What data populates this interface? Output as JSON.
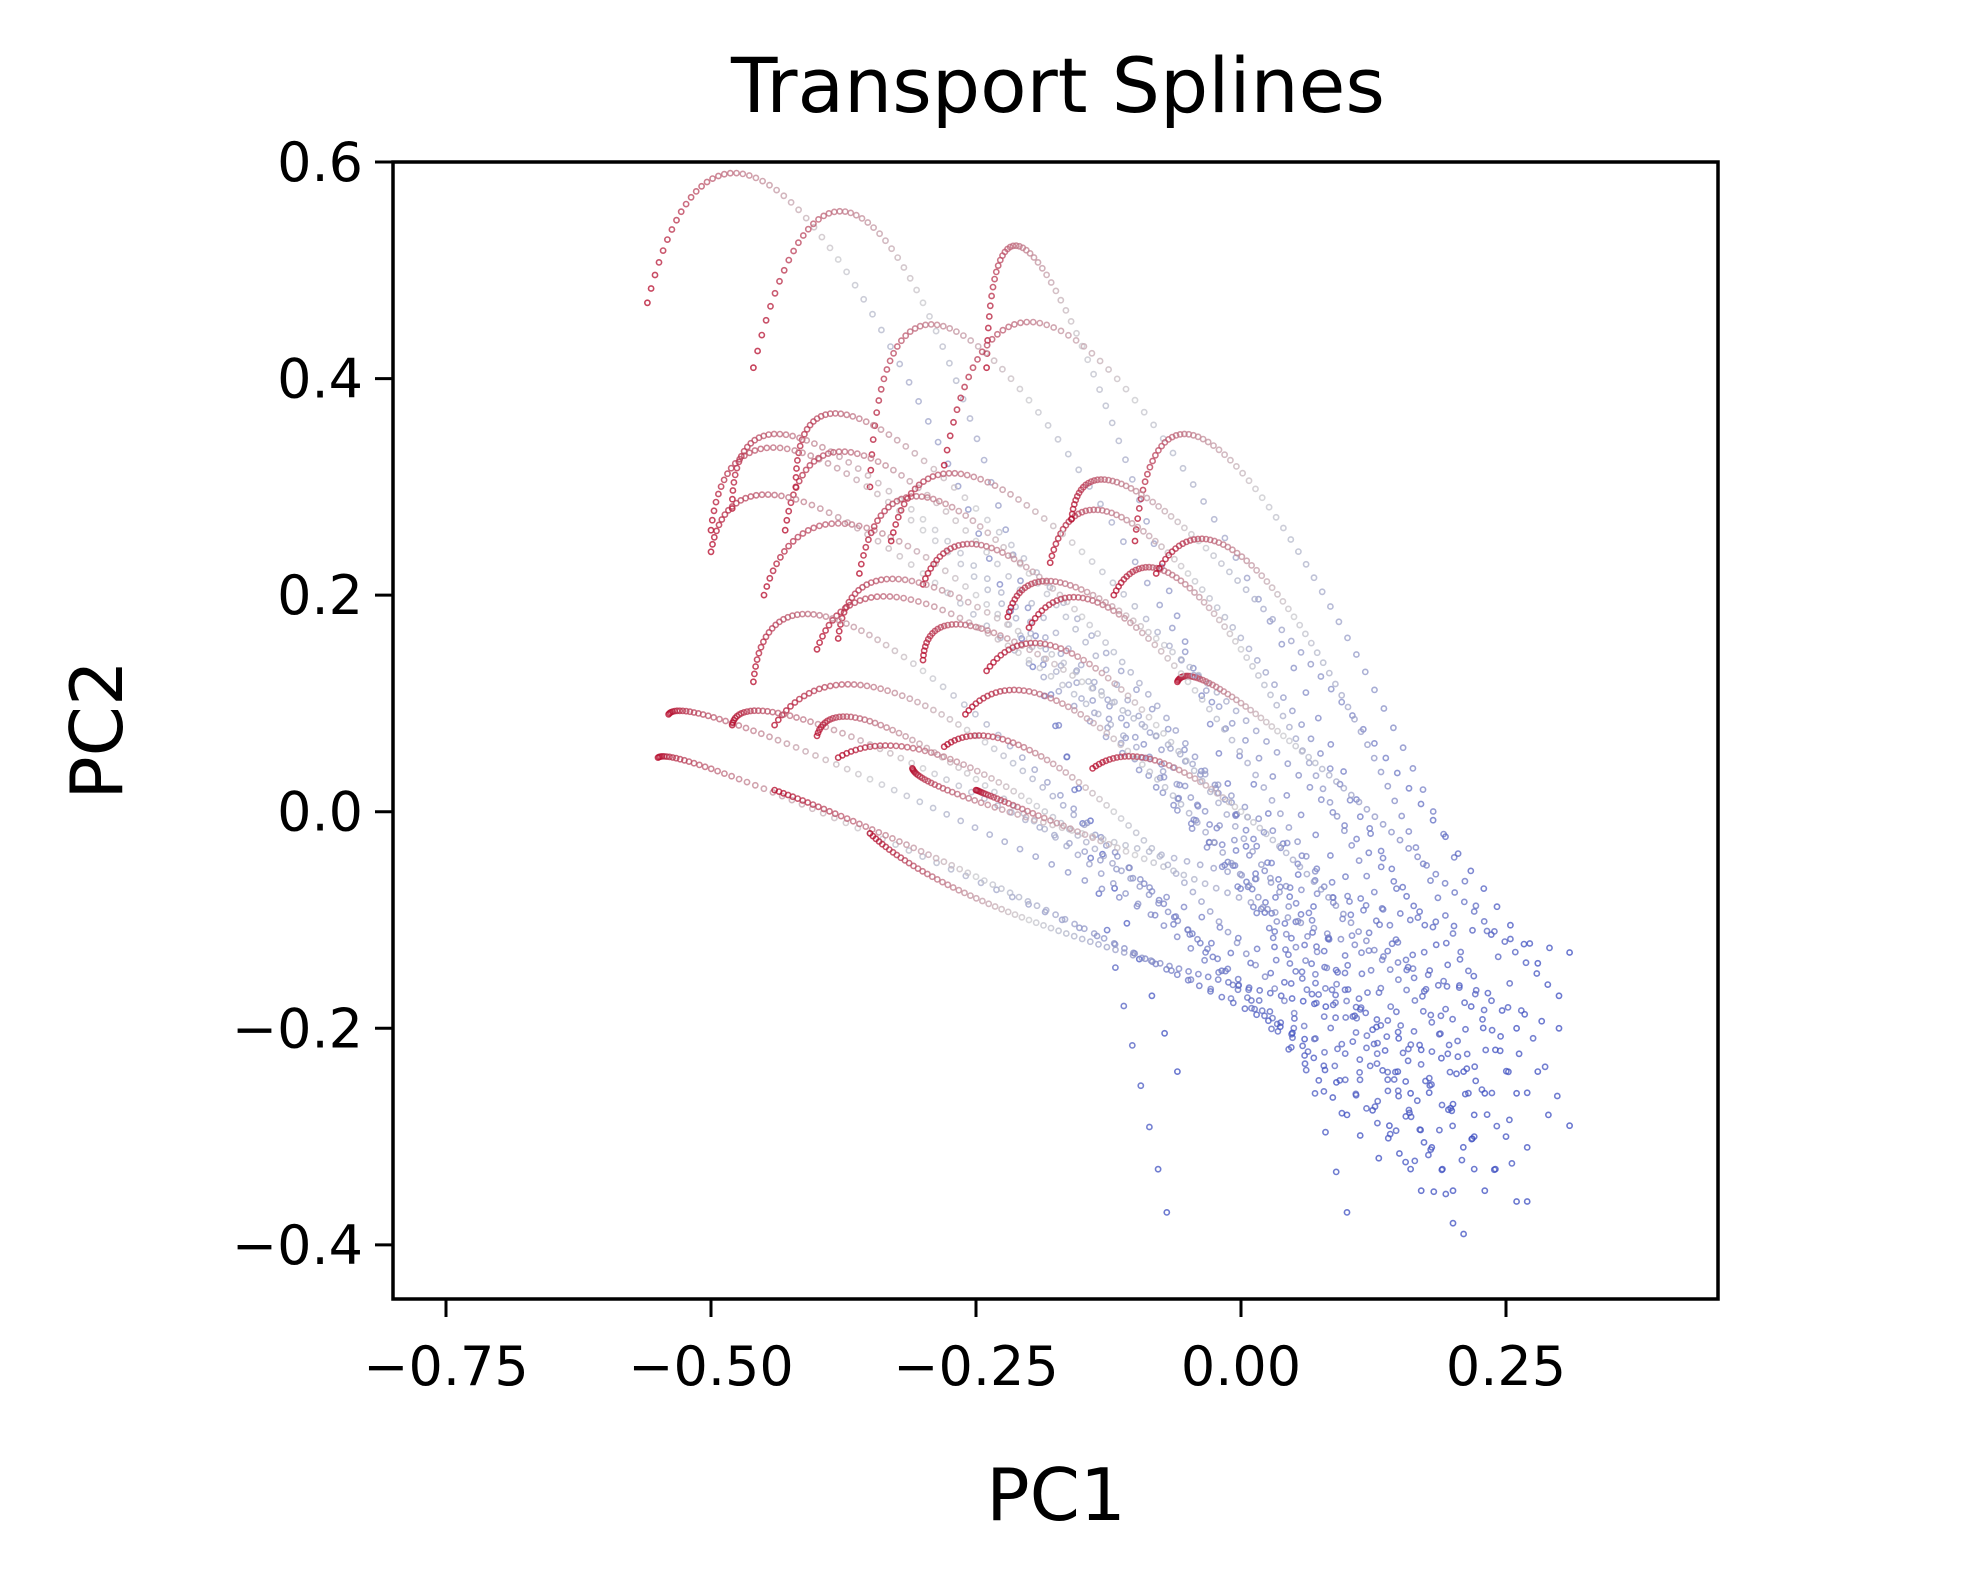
{
  "chart_data": {
    "type": "scatter",
    "title": "Transport Splines",
    "xlabel": "PC1",
    "ylabel": "PC2",
    "xlim": [
      -0.8,
      0.45
    ],
    "ylim": [
      -0.45,
      0.6
    ],
    "xticks": [
      -0.75,
      -0.5,
      -0.25,
      0.0,
      0.25
    ],
    "xtick_labels": [
      "−0.75",
      "−0.50",
      "−0.25",
      "0.00",
      "0.25"
    ],
    "yticks": [
      0.6,
      0.4,
      0.2,
      0.0,
      -0.2,
      -0.4
    ],
    "ytick_labels": [
      "0.6",
      "0.4",
      "0.2",
      "0.0",
      "−0.2",
      "−0.4"
    ],
    "grid": false,
    "colormap": "coolwarm",
    "color_start": "#b40426",
    "color_mid": "#c8c8cc",
    "color_end": "#3b4cc0",
    "splines": [
      {
        "start": [
          -0.56,
          0.47
        ],
        "mid": [
          -0.38,
          0.51
        ],
        "end": [
          -0.06,
          -0.24
        ]
      },
      {
        "start": [
          -0.46,
          0.41
        ],
        "mid": [
          -0.3,
          0.47
        ],
        "end": [
          -0.07,
          -0.37
        ]
      },
      {
        "start": [
          -0.24,
          0.41
        ],
        "mid": [
          -0.15,
          0.43
        ],
        "end": [
          0.1,
          -0.37
        ]
      },
      {
        "start": [
          -0.35,
          0.3
        ],
        "mid": [
          -0.2,
          0.38
        ],
        "end": [
          0.21,
          -0.39
        ]
      },
      {
        "start": [
          -0.28,
          0.32
        ],
        "mid": [
          -0.1,
          0.38
        ],
        "end": [
          0.27,
          -0.36
        ]
      },
      {
        "start": [
          -0.1,
          0.25
        ],
        "mid": [
          0.02,
          0.29
        ],
        "end": [
          0.31,
          -0.29
        ]
      },
      {
        "start": [
          -0.42,
          0.3
        ],
        "mid": [
          -0.25,
          0.28
        ],
        "end": [
          0.26,
          -0.36
        ]
      },
      {
        "start": [
          -0.48,
          0.28
        ],
        "mid": [
          -0.3,
          0.27
        ],
        "end": [
          0.24,
          -0.33
        ]
      },
      {
        "start": [
          -0.5,
          0.26
        ],
        "mid": [
          -0.3,
          0.26
        ],
        "end": [
          0.23,
          -0.35
        ]
      },
      {
        "start": [
          -0.43,
          0.26
        ],
        "mid": [
          -0.25,
          0.25
        ],
        "end": [
          0.2,
          -0.38
        ]
      },
      {
        "start": [
          -0.5,
          0.24
        ],
        "mid": [
          -0.3,
          0.22
        ],
        "end": [
          0.22,
          -0.3
        ]
      },
      {
        "start": [
          -0.45,
          0.2
        ],
        "mid": [
          -0.25,
          0.2
        ],
        "end": [
          0.19,
          -0.33
        ]
      },
      {
        "start": [
          -0.36,
          0.22
        ],
        "mid": [
          -0.2,
          0.22
        ],
        "end": [
          0.17,
          -0.35
        ]
      },
      {
        "start": [
          -0.3,
          0.21
        ],
        "mid": [
          -0.15,
          0.18
        ],
        "end": [
          0.16,
          -0.26
        ]
      },
      {
        "start": [
          -0.38,
          0.16
        ],
        "mid": [
          -0.2,
          0.16
        ],
        "end": [
          0.29,
          -0.28
        ]
      },
      {
        "start": [
          -0.4,
          0.15
        ],
        "mid": [
          -0.2,
          0.14
        ],
        "end": [
          0.25,
          -0.3
        ]
      },
      {
        "start": [
          -0.46,
          0.12
        ],
        "mid": [
          -0.3,
          0.13
        ],
        "end": [
          0.13,
          -0.32
        ]
      },
      {
        "start": [
          -0.44,
          0.08
        ],
        "mid": [
          -0.25,
          0.07
        ],
        "end": [
          0.1,
          -0.28
        ]
      },
      {
        "start": [
          -0.54,
          0.09
        ],
        "mid": [
          -0.35,
          0.03
        ],
        "end": [
          0.17,
          -0.22
        ]
      },
      {
        "start": [
          -0.55,
          0.05
        ],
        "mid": [
          -0.35,
          -0.02
        ],
        "end": [
          0.2,
          -0.27
        ]
      },
      {
        "start": [
          -0.48,
          0.08
        ],
        "mid": [
          -0.3,
          0.04
        ],
        "end": [
          0.21,
          -0.24
        ]
      },
      {
        "start": [
          -0.4,
          0.07
        ],
        "mid": [
          -0.25,
          0.03
        ],
        "end": [
          0.14,
          -0.29
        ]
      },
      {
        "start": [
          -0.38,
          0.05
        ],
        "mid": [
          -0.2,
          0.01
        ],
        "end": [
          0.09,
          -0.25
        ]
      },
      {
        "start": [
          -0.31,
          0.04
        ],
        "mid": [
          -0.15,
          -0.02
        ],
        "end": [
          0.31,
          -0.13
        ]
      },
      {
        "start": [
          -0.25,
          0.02
        ],
        "mid": [
          -0.1,
          -0.04
        ],
        "end": [
          0.3,
          -0.2
        ]
      },
      {
        "start": [
          -0.44,
          0.02
        ],
        "mid": [
          -0.25,
          -0.06
        ],
        "end": [
          0.06,
          -0.21
        ]
      },
      {
        "start": [
          -0.35,
          -0.02
        ],
        "mid": [
          -0.2,
          -0.1
        ],
        "end": [
          0.08,
          -0.18
        ]
      },
      {
        "start": [
          -0.3,
          0.14
        ],
        "mid": [
          -0.15,
          0.12
        ],
        "end": [
          0.28,
          -0.24
        ]
      },
      {
        "start": [
          -0.22,
          0.18
        ],
        "mid": [
          -0.08,
          0.16
        ],
        "end": [
          0.26,
          -0.2
        ]
      },
      {
        "start": [
          -0.18,
          0.23
        ],
        "mid": [
          -0.05,
          0.22
        ],
        "end": [
          0.24,
          -0.22
        ]
      },
      {
        "start": [
          -0.16,
          0.27
        ],
        "mid": [
          -0.04,
          0.25
        ],
        "end": [
          0.28,
          -0.14
        ]
      },
      {
        "start": [
          -0.12,
          0.2
        ],
        "mid": [
          0.0,
          0.15
        ],
        "end": [
          0.22,
          -0.28
        ]
      },
      {
        "start": [
          -0.06,
          0.12
        ],
        "mid": [
          0.04,
          0.07
        ],
        "end": [
          0.3,
          -0.17
        ]
      },
      {
        "start": [
          -0.26,
          0.09
        ],
        "mid": [
          -0.1,
          0.05
        ],
        "end": [
          0.18,
          -0.31
        ]
      },
      {
        "start": [
          -0.14,
          0.04
        ],
        "mid": [
          0.0,
          0.0
        ],
        "end": [
          0.23,
          -0.26
        ]
      },
      {
        "start": [
          -0.2,
          0.17
        ],
        "mid": [
          -0.05,
          0.12
        ],
        "end": [
          0.22,
          -0.33
        ]
      },
      {
        "start": [
          -0.08,
          0.22
        ],
        "mid": [
          0.05,
          0.18
        ],
        "end": [
          0.26,
          -0.26
        ]
      },
      {
        "start": [
          -0.33,
          0.25
        ],
        "mid": [
          -0.15,
          0.24
        ],
        "end": [
          0.27,
          -0.31
        ]
      },
      {
        "start": [
          -0.24,
          0.13
        ],
        "mid": [
          -0.08,
          0.08
        ],
        "end": [
          0.2,
          -0.35
        ]
      },
      {
        "start": [
          -0.28,
          0.06
        ],
        "mid": [
          -0.12,
          0.0
        ],
        "end": [
          0.16,
          -0.33
        ]
      }
    ]
  }
}
